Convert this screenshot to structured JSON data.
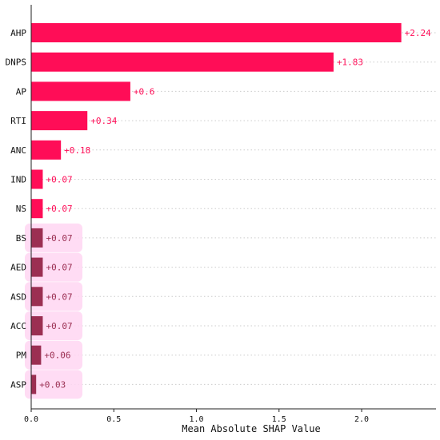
{
  "chart_data": {
    "type": "bar",
    "orientation": "horizontal",
    "categories": [
      "AHP",
      "DNPS",
      "AP",
      "RTI",
      "ANC",
      "IND",
      "NS",
      "BS",
      "AED",
      "ASD",
      "ACC",
      "PM",
      "ASP"
    ],
    "values": [
      2.24,
      1.83,
      0.6,
      0.34,
      0.18,
      0.07,
      0.07,
      0.07,
      0.07,
      0.07,
      0.07,
      0.06,
      0.03
    ],
    "data_labels": [
      "+2.24",
      "+1.83",
      "+0.6",
      "+0.34",
      "+0.18",
      "+0.07",
      "+0.07",
      "+0.07",
      "+0.07",
      "+0.07",
      "+0.07",
      "+0.06",
      "+0.03"
    ],
    "title": "",
    "xlabel": "Mean Absolute SHAP Value",
    "ylabel": "",
    "xlim": [
      0,
      2.45
    ],
    "xticks": [
      0.0,
      0.5,
      1.0,
      1.5,
      2.0
    ],
    "xtick_labels": [
      "0.0",
      "0.5",
      "1.0",
      "1.5",
      "2.0"
    ],
    "grid": "horizontal dotted",
    "legend": "none",
    "colors": {
      "bar": "#ff0d57",
      "bar_dark": "#9b2f52",
      "label": "#ff0d57",
      "label_dark": "#9b2f52",
      "halo": "#ffd6f2",
      "grid": "#cccccc",
      "axis": "#222222"
    }
  }
}
